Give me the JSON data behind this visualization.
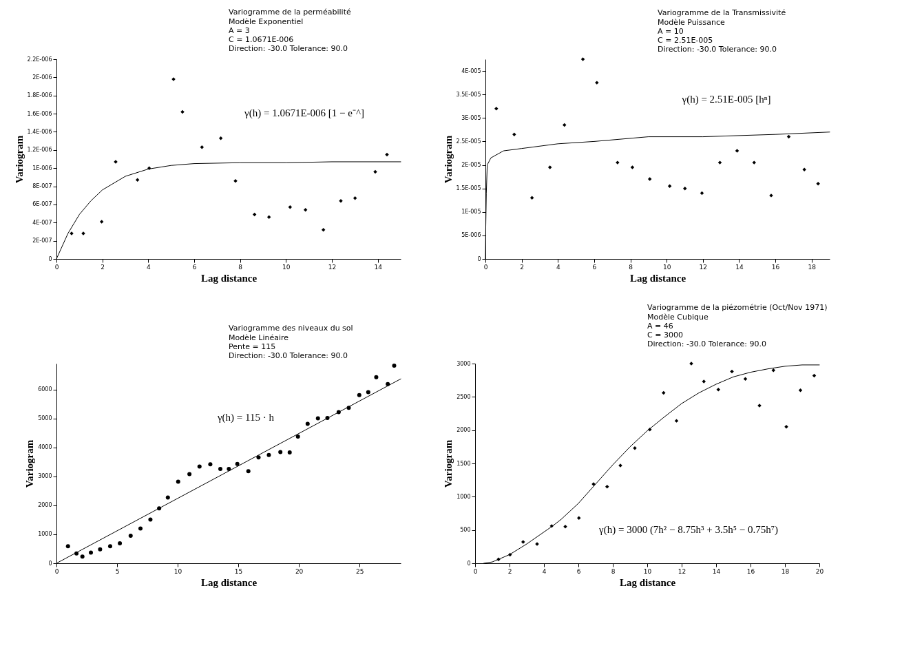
{
  "chart_data": [
    {
      "type": "scatter",
      "title": "Variogramme de la perméabilité",
      "subtitle": "Modèle Exponentiel\nA = 3\nC = 1.0671E-006\nDirection: -30.0   Tolerance: 90.0",
      "xlabel": "Lag distance",
      "ylabel": "Variogram",
      "xlim": [
        0,
        15
      ],
      "xticks": [
        0,
        2,
        4,
        6,
        8,
        10,
        12,
        14
      ],
      "ylim": [
        0,
        2.2e-06
      ],
      "yticks": [
        0,
        {
          "value": 2e-07,
          "label": "2E-007"
        },
        {
          "value": 4e-07,
          "label": "4E-007"
        },
        {
          "value": 6e-07,
          "label": "6E-007"
        },
        {
          "value": 8e-07,
          "label": "8E-007"
        },
        {
          "value": 1e-06,
          "label": "1E-006"
        },
        {
          "value": 1.2e-06,
          "label": "1.2E-006"
        },
        {
          "value": 1.4e-06,
          "label": "1.4E-006"
        },
        {
          "value": 1.6e-06,
          "label": "1.6E-006"
        },
        {
          "value": 1.8e-06,
          "label": "1.8E-006"
        },
        {
          "value": 2e-06,
          "label": "2E-006"
        },
        {
          "value": 2.2e-06,
          "label": "2.2E-006"
        }
      ],
      "annotations": [
        "γ(h) = 1.0671E-006 [1 − e⁻^]"
      ],
      "series": [
        {
          "type": "scatter",
          "color": "#000000",
          "marker": "diamond",
          "x": [
            0.66,
            1.17,
            1.97,
            2.58,
            3.53,
            4.04,
            5.1,
            5.49,
            6.34,
            7.16,
            7.8,
            8.63,
            9.26,
            10.18,
            10.85,
            11.63,
            12.39,
            13.01,
            13.89,
            14.4
          ],
          "values": [
            2.8e-07,
            2.8e-07,
            4.1e-07,
            1.07e-06,
            8.7e-07,
            1e-06,
            1.98e-06,
            1.62e-06,
            1.23e-06,
            1.33e-06,
            8.6e-07,
            4.9e-07,
            4.6e-07,
            5.7e-07,
            5.4e-07,
            3.2e-07,
            6.4e-07,
            6.7e-07,
            9.6e-07,
            1.15e-06
          ]
        },
        {
          "type": "line",
          "color": "#000000",
          "x": [
            0,
            0.5,
            1,
            1.5,
            2,
            3,
            4,
            5,
            6,
            8,
            10,
            12,
            15
          ],
          "values": [
            0,
            2.8e-07,
            4.9e-07,
            6.4e-07,
            7.6e-07,
            9.1e-07,
            9.9e-07,
            1.03e-06,
            1.05e-06,
            1.06e-06,
            1.06e-06,
            1.07e-06,
            1.07e-06
          ]
        }
      ]
    },
    {
      "type": "scatter",
      "title": "Variogramme de la Transmissivité",
      "subtitle": "Modèle Puissance\nA = 10\nC = 2.51E-005\nDirection: -30.0   Tolerance: 90.0",
      "xlabel": "Lag distance",
      "ylabel": "Variogram",
      "xlim": [
        0,
        19
      ],
      "xticks": [
        0,
        2,
        4,
        6,
        8,
        10,
        12,
        14,
        16,
        18
      ],
      "ylim": [
        0,
        4.25e-05
      ],
      "yticks": [
        0,
        {
          "value": 5e-06,
          "label": "5E-006"
        },
        {
          "value": 1e-05,
          "label": "1E-005"
        },
        {
          "value": 1.5e-05,
          "label": "1.5E-005"
        },
        {
          "value": 2e-05,
          "label": "2E-005"
        },
        {
          "value": 2.5e-05,
          "label": "2.5E-005"
        },
        {
          "value": 3e-05,
          "label": "3E-005"
        },
        {
          "value": 3.5e-05,
          "label": "3.5E-005"
        },
        {
          "value": 4e-05,
          "label": "4E-005"
        }
      ],
      "annotations": [
        "γ(h) = 2.51E-005 [hⁿ]"
      ],
      "series": [
        {
          "type": "scatter",
          "color": "#000000",
          "marker": "diamond",
          "x": [
            0.6,
            1.59,
            2.57,
            3.56,
            4.36,
            5.38,
            6.15,
            7.29,
            8.11,
            9.07,
            10.17,
            11.01,
            11.95,
            12.94,
            13.89,
            14.83,
            15.77,
            16.74,
            17.6,
            18.36
          ],
          "values": [
            3.2e-05,
            2.65e-05,
            1.3e-05,
            1.95e-05,
            2.85e-05,
            4.25e-05,
            3.75e-05,
            2.05e-05,
            1.95e-05,
            1.7e-05,
            1.55e-05,
            1.5e-05,
            1.4e-05,
            2.05e-05,
            2.3e-05,
            2.05e-05,
            1.35e-05,
            2.6e-05,
            1.9e-05,
            1.6e-05
          ]
        },
        {
          "type": "line",
          "color": "#000000",
          "x": [
            0,
            0.02,
            0.05,
            0.1,
            0.3,
            1,
            2,
            4,
            6,
            9,
            12,
            16,
            19
          ],
          "values": [
            0,
            7e-06,
            1.4e-05,
            2e-05,
            2.15e-05,
            2.3e-05,
            2.35e-05,
            2.45e-05,
            2.5e-05,
            2.6e-05,
            2.6e-05,
            2.65e-05,
            2.7e-05
          ]
        }
      ]
    },
    {
      "type": "scatter",
      "title": "Variogramme des niveaux du sol",
      "subtitle": "Modèle Linéaire\nPente = 115\nDirection: -30.0   Tolerance: 90.0",
      "xlabel": "Lag distance",
      "ylabel": "Variogram",
      "xlim": [
        0,
        28.4
      ],
      "xticks": [
        0,
        5,
        10,
        15,
        20,
        25
      ],
      "ylim": [
        0,
        6900
      ],
      "yticks": [
        0,
        1000,
        2000,
        3000,
        4000,
        5000,
        6000
      ],
      "annotations": [
        "γ(h) = 115 · h"
      ],
      "series": [
        {
          "type": "scatter",
          "color": "#000000",
          "marker": "circle",
          "x": [
            0.95,
            1.65,
            2.14,
            2.84,
            3.6,
            4.43,
            5.23,
            6.12,
            6.93,
            7.75,
            8.47,
            9.19,
            10.04,
            10.97,
            11.8,
            12.69,
            13.52,
            14.22,
            14.92,
            15.83,
            16.67,
            17.52,
            18.47,
            19.24,
            19.92,
            20.72,
            21.57,
            22.35,
            23.28,
            24.11,
            24.98,
            25.72,
            26.38,
            27.33,
            27.86
          ],
          "values": [
            590,
            340,
            230,
            370,
            480,
            590,
            690,
            950,
            1200,
            1510,
            1900,
            2270,
            2820,
            3080,
            3340,
            3420,
            3260,
            3260,
            3430,
            3180,
            3660,
            3740,
            3840,
            3830,
            4380,
            4820,
            5010,
            5020,
            5220,
            5370,
            5810,
            5910,
            6430,
            6190,
            6830
          ]
        },
        {
          "type": "line",
          "color": "#000000",
          "x": [
            0,
            28.4
          ],
          "values": [
            0,
            6370
          ]
        }
      ]
    },
    {
      "type": "scatter",
      "title": "Variogramme de la piézométrie (Oct/Nov 1971)",
      "subtitle": "Modèle Cubique\nA = 46\nC = 3000\n \nDirection: -30.0   Tolerance: 90.0",
      "xlabel": "Lag distance",
      "ylabel": "Variogram",
      "xlim": [
        0,
        20
      ],
      "xticks": [
        0,
        2,
        4,
        6,
        8,
        10,
        12,
        14,
        16,
        18,
        20
      ],
      "ylim": [
        0,
        3000
      ],
      "yticks": [
        0,
        500,
        1000,
        1500,
        2000,
        2500,
        3000
      ],
      "annotations": [
        "γ(h) = 3000 (7h² − 8.75h³ + 3.5h⁵ − 0.75h⁷)"
      ],
      "series": [
        {
          "type": "scatter",
          "color": "#000000",
          "marker": "diamond",
          "x": [
            1.36,
            2.03,
            2.79,
            3.6,
            4.45,
            5.24,
            6.03,
            6.88,
            7.67,
            8.44,
            9.28,
            10.15,
            10.95,
            11.7,
            12.56,
            13.29,
            14.13,
            14.92,
            15.7,
            16.52,
            17.33,
            18.08,
            18.9,
            19.7
          ],
          "values": [
            60,
            130,
            320,
            290,
            560,
            550,
            680,
            1190,
            1150,
            1470,
            1730,
            2010,
            2560,
            2140,
            3000,
            2730,
            2610,
            2880,
            2770,
            2370,
            2900,
            2050,
            2600,
            2820
          ]
        },
        {
          "type": "line",
          "color": "#000000",
          "x": [
            0.5,
            1,
            2,
            3,
            4,
            4.5,
            5,
            6,
            7,
            8,
            9,
            10,
            11,
            12,
            13,
            14,
            15,
            16,
            17,
            18,
            19,
            20
          ],
          "values": [
            0,
            20,
            130,
            290,
            470,
            560,
            660,
            900,
            1190,
            1480,
            1750,
            1990,
            2200,
            2400,
            2560,
            2690,
            2800,
            2870,
            2920,
            2960,
            2980,
            2980
          ]
        }
      ]
    }
  ]
}
